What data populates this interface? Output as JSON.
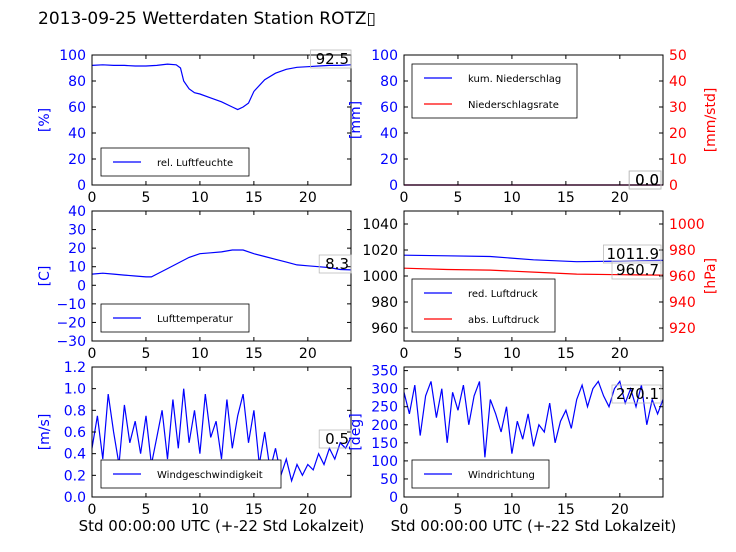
{
  "page": {
    "title": "2013-09-25 Wetterdaten Station ROTZ▯"
  },
  "colors": {
    "primary": "#0000ff",
    "secondary": "#ff0000",
    "axis": "#000000"
  },
  "chart_data": [
    {
      "type": "line",
      "ylabel": "[%]",
      "xlim": [
        0,
        24
      ],
      "ylim": [
        0,
        100
      ],
      "xticks": [
        "0",
        "5",
        "10",
        "15",
        "20"
      ],
      "yticks": [
        "0",
        "20",
        "40",
        "60",
        "80",
        "100"
      ],
      "value_label": "92.5",
      "legend": {
        "placement": "lower-center",
        "entries": [
          "rel. Luftfeuchte"
        ]
      },
      "series": [
        {
          "name": "rel. Luftfeuchte",
          "color": "#0000ff",
          "x": [
            0,
            1,
            2,
            3,
            4,
            5,
            6,
            7,
            7.8,
            8.2,
            8.5,
            9,
            9.5,
            10,
            11,
            12,
            13,
            13.5,
            14,
            14.5,
            15,
            16,
            17,
            18,
            19,
            20,
            21,
            22,
            23,
            24
          ],
          "y": [
            92,
            92.5,
            92,
            92,
            91.5,
            91.5,
            92,
            93,
            92.5,
            90,
            80,
            74,
            71,
            70,
            67,
            64,
            60,
            58,
            60,
            63,
            72,
            81,
            86,
            89,
            90.5,
            91,
            91.5,
            92,
            92,
            92.5
          ]
        }
      ]
    },
    {
      "type": "line",
      "ylabel": "[mm]",
      "ylabel2": "[mm/std]",
      "xlim": [
        0,
        24
      ],
      "ylim": [
        0,
        100
      ],
      "ylim2": [
        0,
        50
      ],
      "xticks": [
        "0",
        "5",
        "10",
        "15",
        "20"
      ],
      "yticks": [
        "0",
        "20",
        "40",
        "60",
        "80",
        "100"
      ],
      "yticks2": [
        "0",
        "10",
        "20",
        "30",
        "40",
        "50"
      ],
      "value_labels": [
        "0.0",
        "0.0"
      ],
      "legend": {
        "placement": "upper-left",
        "entries": [
          "kum. Niederschlag",
          "Niederschlagsrate"
        ]
      },
      "series": [
        {
          "name": "kum. Niederschlag",
          "color": "#0000ff",
          "axis": "left",
          "x": [
            0,
            24
          ],
          "y": [
            0,
            0
          ]
        },
        {
          "name": "Niederschlagsrate",
          "color": "#ff0000",
          "axis": "right",
          "x": [
            0,
            24
          ],
          "y": [
            0,
            0
          ]
        }
      ]
    },
    {
      "type": "line",
      "ylabel": "[C]",
      "xlim": [
        0,
        24
      ],
      "ylim": [
        -30,
        40
      ],
      "xticks": [
        "0",
        "5",
        "10",
        "15",
        "20"
      ],
      "yticks": [
        "−30",
        "−20",
        "−10",
        "0",
        "10",
        "20",
        "30",
        "40"
      ],
      "value_label": "8.3",
      "legend": {
        "placement": "lower-center",
        "entries": [
          "Lufttemperatur"
        ]
      },
      "series": [
        {
          "name": "Lufttemperatur",
          "color": "#0000ff",
          "x": [
            0,
            1,
            2,
            3,
            4,
            5,
            5.5,
            6,
            7,
            8,
            9,
            10,
            11,
            12,
            13,
            14,
            15,
            16,
            17,
            18,
            19,
            20,
            21,
            22,
            23,
            24
          ],
          "y": [
            6,
            6.5,
            6,
            5.5,
            5,
            4.5,
            4.5,
            6,
            9,
            12,
            15,
            17,
            17.5,
            18,
            19,
            19,
            17,
            15.5,
            14,
            12.5,
            11,
            10.5,
            10,
            9.5,
            8.5,
            8.3
          ]
        }
      ]
    },
    {
      "type": "line",
      "ylabel2": "[hPa]",
      "xlim": [
        0,
        24
      ],
      "ylim": [
        950,
        1050
      ],
      "ylim2": [
        910,
        1010
      ],
      "xticks": [
        "0",
        "5",
        "10",
        "15",
        "20"
      ],
      "yticks": [
        "960",
        "980",
        "1000",
        "1020",
        "1040"
      ],
      "yticks2": [
        "920",
        "940",
        "960",
        "980",
        "1000"
      ],
      "value_labels": [
        "1011.9",
        "960.7"
      ],
      "legend": {
        "placement": "lower-left",
        "entries": [
          "red. Luftdruck",
          "abs. Luftdruck"
        ]
      },
      "series": [
        {
          "name": "red. Luftdruck",
          "color": "#0000ff",
          "axis": "left",
          "x": [
            0,
            4,
            8,
            12,
            16,
            20,
            24
          ],
          "y": [
            1016,
            1015.5,
            1015,
            1012.5,
            1011,
            1011.5,
            1012
          ]
        },
        {
          "name": "abs. Luftdruck",
          "color": "#ff0000",
          "axis": "right",
          "x": [
            0,
            4,
            8,
            12,
            16,
            20,
            24
          ],
          "y": [
            966,
            965,
            964.5,
            963,
            961.5,
            961,
            960.7
          ]
        }
      ]
    },
    {
      "type": "line",
      "ylabel": "[m/s]",
      "xlabel": "Std 00:00:00 UTC (+-22 Std Lokalzeit)",
      "xlim": [
        0,
        24
      ],
      "ylim": [
        0,
        1.2
      ],
      "xticks": [
        "0",
        "5",
        "10",
        "15",
        "20"
      ],
      "yticks": [
        "0.0",
        "0.2",
        "0.4",
        "0.6",
        "0.8",
        "1.0",
        "1.2"
      ],
      "value_label": "0.5",
      "legend": {
        "placement": "lower-center",
        "entries": [
          "Windgeschwindigkeit"
        ]
      },
      "series": [
        {
          "name": "Windgeschwindigkeit",
          "color": "#0000ff",
          "x": [
            0,
            0.5,
            1,
            1.5,
            2,
            2.5,
            3,
            3.5,
            4,
            4.5,
            5,
            5.5,
            6,
            6.5,
            7,
            7.5,
            8,
            8.5,
            9,
            9.5,
            10,
            10.5,
            11,
            11.5,
            12,
            12.5,
            13,
            13.5,
            14,
            14.5,
            15,
            15.5,
            16,
            16.5,
            17,
            17.5,
            18,
            18.5,
            19,
            19.5,
            20,
            20.5,
            21,
            21.5,
            22,
            22.5,
            23,
            23.5,
            24
          ],
          "y": [
            0.45,
            0.75,
            0.35,
            0.95,
            0.6,
            0.3,
            0.85,
            0.5,
            0.7,
            0.4,
            0.75,
            0.3,
            0.55,
            0.8,
            0.35,
            0.9,
            0.45,
            1.0,
            0.5,
            0.8,
            0.4,
            0.95,
            0.55,
            0.7,
            0.35,
            0.9,
            0.45,
            0.75,
            0.95,
            0.5,
            0.8,
            0.3,
            0.6,
            0.25,
            0.45,
            0.2,
            0.35,
            0.15,
            0.3,
            0.2,
            0.3,
            0.25,
            0.4,
            0.3,
            0.45,
            0.35,
            0.5,
            0.45,
            0.55
          ]
        }
      ]
    },
    {
      "type": "line",
      "ylabel": "[deg]",
      "xlabel": "Std 00:00:00 UTC (+-22 Std Lokalzeit)",
      "xlim": [
        0,
        24
      ],
      "ylim": [
        0,
        360
      ],
      "xticks": [
        "0",
        "5",
        "10",
        "15",
        "20"
      ],
      "yticks": [
        "0",
        "50",
        "100",
        "150",
        "200",
        "250",
        "300",
        "350"
      ],
      "value_label": "270.1",
      "legend": {
        "placement": "lower-left",
        "entries": [
          "Windrichtung"
        ]
      },
      "series": [
        {
          "name": "Windrichtung",
          "color": "#0000ff",
          "x": [
            0,
            0.5,
            1,
            1.5,
            2,
            2.5,
            3,
            3.5,
            4,
            4.5,
            5,
            5.5,
            6,
            6.5,
            7,
            7.5,
            8,
            8.5,
            9,
            9.5,
            10,
            10.5,
            11,
            11.5,
            12,
            12.5,
            13,
            13.5,
            14,
            14.5,
            15,
            15.5,
            16,
            16.5,
            17,
            17.5,
            18,
            18.5,
            19,
            19.5,
            20,
            20.5,
            21,
            21.5,
            22,
            22.5,
            23,
            23.5,
            24
          ],
          "y": [
            290,
            230,
            310,
            170,
            280,
            320,
            220,
            300,
            150,
            290,
            240,
            310,
            200,
            280,
            320,
            110,
            270,
            230,
            180,
            250,
            120,
            210,
            160,
            230,
            140,
            200,
            180,
            260,
            150,
            210,
            240,
            190,
            270,
            310,
            250,
            300,
            320,
            280,
            250,
            300,
            320,
            260,
            300,
            250,
            310,
            200,
            270,
            230,
            270
          ]
        }
      ]
    }
  ]
}
